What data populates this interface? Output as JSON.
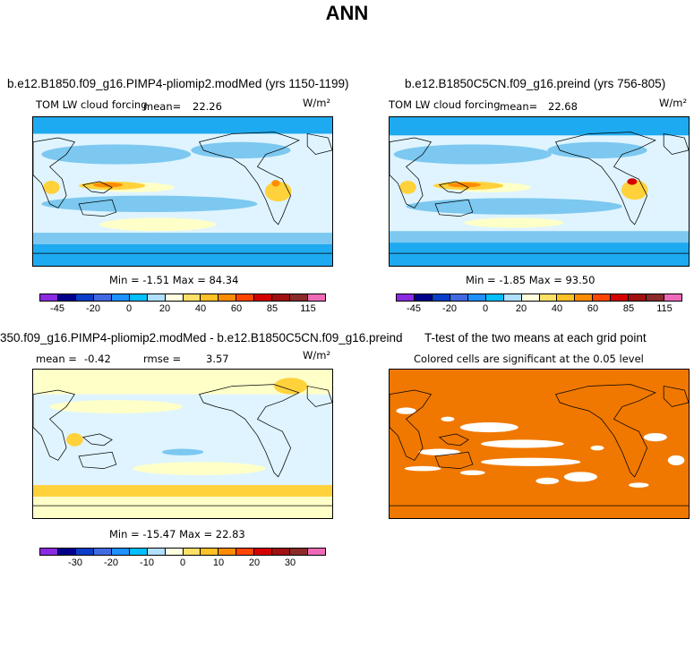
{
  "page_title": "ANN",
  "panels": {
    "p1": {
      "title": "b.e12.B1850.f09_g16.PIMP4-pliomip2.modMed (yrs 1150-1199)",
      "variable": "TOM LW cloud forcing",
      "mean_label": "mean=",
      "mean_value": "22.26",
      "units": "W/m²",
      "minmax": "Min =  -1.51  Max =  84.34"
    },
    "p2": {
      "title": "b.e12.B1850C5CN.f09_g16.preind (yrs 756-805)",
      "variable": "TOM LW cloud forcing",
      "mean_label": "mean=",
      "mean_value": "22.68",
      "units": "W/m²",
      "minmax": "Min =  -1.85  Max =  93.50"
    },
    "p3": {
      "title": "350.f09_g16.PIMP4-pliomip2.modMed - b.e12.B1850C5CN.f09_g16.preind",
      "mean_label": "mean =",
      "mean_value": "-0.42",
      "rmse_label": "rmse =",
      "rmse_value": "3.57",
      "units": "W/m²",
      "minmax": "Min = -15.47  Max =  22.83"
    },
    "p4": {
      "title": "T-test of the two means at each grid point",
      "subtitle": "Colored cells are significant at the 0.05 level"
    }
  },
  "colorbar_abs": {
    "colors": [
      "#8a2be2",
      "#00008b",
      "#0a3ec8",
      "#4169e1",
      "#1e90ff",
      "#00bfff",
      "#b0e0ff",
      "#ffffe0",
      "#ffe066",
      "#ffc125",
      "#ff8c00",
      "#ff4500",
      "#d40000",
      "#a01010",
      "#8b2a2a",
      "#ee6ab8"
    ],
    "ticks": [
      "-45",
      "-20",
      "0",
      "20",
      "40",
      "60",
      "85",
      "115"
    ]
  },
  "colorbar_diff": {
    "colors": [
      "#8a2be2",
      "#00008b",
      "#0a3ec8",
      "#4169e1",
      "#1e90ff",
      "#00bfff",
      "#b0e0ff",
      "#ffffe0",
      "#ffe066",
      "#ffc125",
      "#ff8c00",
      "#ff4500",
      "#d40000",
      "#a01010",
      "#8b2a2a",
      "#ee6ab8"
    ],
    "ticks": [
      "-30",
      "-20",
      "-10",
      "0",
      "10",
      "20",
      "30"
    ]
  },
  "chart_data": [
    {
      "type": "heatmap",
      "title": "b.e12.B1850.f09_g16.PIMP4-pliomip2.modMed (yrs 1150-1199)",
      "variable": "TOM LW cloud forcing",
      "units": "W/m²",
      "mean": 22.26,
      "min": -1.51,
      "max": 84.34,
      "colorbar_ticks": [
        -45,
        -20,
        0,
        20,
        40,
        60,
        85,
        115
      ]
    },
    {
      "type": "heatmap",
      "title": "b.e12.B1850C5CN.f09_g16.preind (yrs 756-805)",
      "variable": "TOM LW cloud forcing",
      "units": "W/m²",
      "mean": 22.68,
      "min": -1.85,
      "max": 93.5,
      "colorbar_ticks": [
        -45,
        -20,
        0,
        20,
        40,
        60,
        85,
        115
      ]
    },
    {
      "type": "heatmap",
      "title": "350.f09_g16.PIMP4-pliomip2.modMed - b.e12.B1850C5CN.f09_g16.preind",
      "units": "W/m²",
      "mean": -0.42,
      "rmse": 3.57,
      "min": -15.47,
      "max": 22.83,
      "colorbar_ticks": [
        -30,
        -20,
        -10,
        0,
        10,
        20,
        30
      ]
    },
    {
      "type": "heatmap",
      "title": "T-test of the two means at each grid point",
      "subtitle": "Colored cells are significant at the 0.05 level"
    }
  ]
}
